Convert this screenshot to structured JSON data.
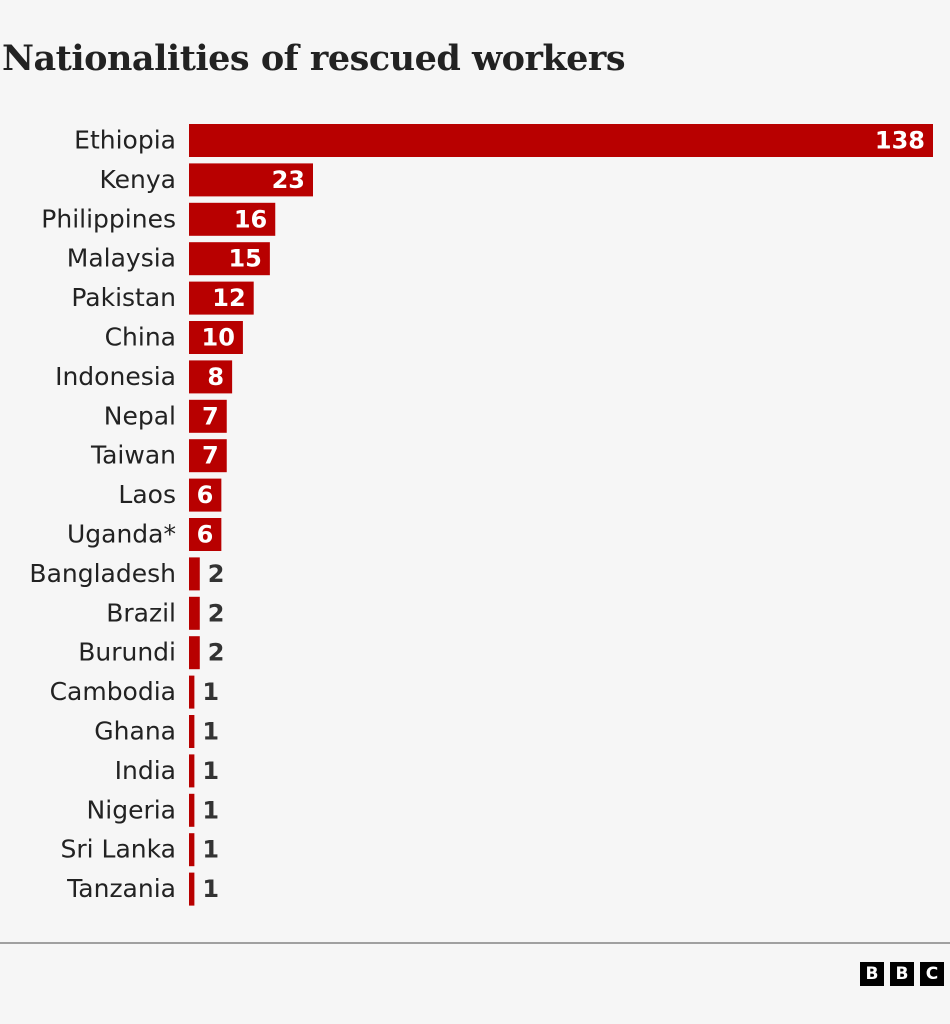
{
  "chart_data": {
    "type": "bar",
    "orientation": "horizontal",
    "title": "Nationalities of rescued workers",
    "categories": [
      "Ethiopia",
      "Kenya",
      "Philippines",
      "Malaysia",
      "Pakistan",
      "China",
      "Indonesia",
      "Nepal",
      "Taiwan",
      "Laos",
      "Uganda*",
      "Bangladesh",
      "Brazil",
      "Burundi",
      "Cambodia",
      "Ghana",
      "India",
      "Nigeria",
      "Sri Lanka",
      "Tanzania"
    ],
    "values": [
      138,
      23,
      16,
      15,
      12,
      10,
      8,
      7,
      7,
      6,
      6,
      2,
      2,
      2,
      1,
      1,
      1,
      1,
      1,
      1
    ],
    "xlim": [
      0,
      138
    ],
    "grid": false,
    "bar_color": "#b80000"
  },
  "footer": {
    "logo": "BBC",
    "logo_letters": [
      "B",
      "B",
      "C"
    ]
  }
}
